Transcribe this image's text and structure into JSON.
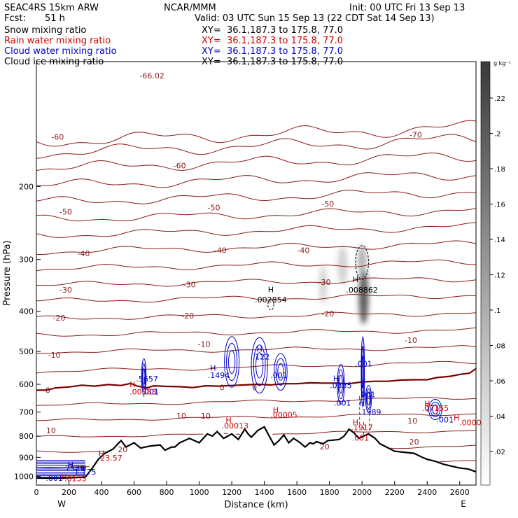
{
  "header": {
    "model": "SEAC4RS 15km ARW",
    "center": "NCAR/MMM",
    "init": "Init: 00 UTC Fri 13 Sep 13",
    "fcst_label": "Fcst:",
    "fcst_value": "51 h",
    "valid": "Valid: 03 UTC Sun 15 Sep 13 (22 CDT Sat 14 Sep 13)"
  },
  "fields": [
    {
      "name": "Snow mixing ratio",
      "xy": "XY=  36.1,187.3 to 175.8, 77.0",
      "color": "#000000"
    },
    {
      "name": "Rain water mixing ratio",
      "xy": "XY=  36.1,187.3 to 175.8, 77.0",
      "color": "#d40000"
    },
    {
      "name": "Cloud water mixing ratio",
      "xy": "XY=  36.1,187.3 to 175.8, 77.0",
      "color": "#0000c8"
    },
    {
      "name": "Cloud ice mixing ratio",
      "xy": "XY=  36.1,187.3 to 175.8, 77.0",
      "color": "#000000"
    }
  ],
  "chart_data": {
    "type": "contour",
    "xlabel": "Distance (km)",
    "ylabel": "Pressure (hPa)",
    "x_ticks": [
      0,
      200,
      400,
      600,
      800,
      1000,
      1200,
      1400,
      1600,
      1800,
      2000,
      2200,
      2400,
      2600
    ],
    "y_ticks": [
      200,
      300,
      400,
      500,
      600,
      700,
      800,
      900,
      1000
    ],
    "xlim": [
      0,
      2700
    ],
    "ylim": [
      1050,
      100
    ],
    "y_scale": "log",
    "west_label": "W",
    "east_label": "E",
    "colorbar": {
      "unit": "g kg⁻¹",
      "ticks": [
        ".22",
        ".2",
        ".18",
        ".16",
        ".14",
        ".12",
        ".1",
        ".08",
        ".06",
        ".04",
        ".02"
      ]
    },
    "temperature_contours": [
      {
        "label": "-70",
        "x": 2330,
        "p": 150
      },
      {
        "label": "-66.02",
        "x": 710,
        "p": 108
      },
      {
        "label": "-60",
        "x": 130,
        "p": 152
      },
      {
        "label": "-60",
        "x": 880,
        "p": 178
      },
      {
        "label": "-50",
        "x": 180,
        "p": 230
      },
      {
        "label": "-50",
        "x": 1090,
        "p": 225
      },
      {
        "label": "-50",
        "x": 1790,
        "p": 220
      },
      {
        "label": "-40",
        "x": 290,
        "p": 290
      },
      {
        "label": "-40",
        "x": 1130,
        "p": 285
      },
      {
        "label": "-40",
        "x": 1640,
        "p": 285
      },
      {
        "label": "-30",
        "x": 180,
        "p": 355
      },
      {
        "label": "-30",
        "x": 940,
        "p": 345
      },
      {
        "label": "-30",
        "x": 1770,
        "p": 340
      },
      {
        "label": "-20",
        "x": 140,
        "p": 415
      },
      {
        "label": "-20",
        "x": 930,
        "p": 410
      },
      {
        "label": "-20",
        "x": 1790,
        "p": 405
      },
      {
        "label": "-10",
        "x": 1030,
        "p": 480
      },
      {
        "label": "-10",
        "x": 2300,
        "p": 470
      },
      {
        "label": "-10",
        "x": 110,
        "p": 510
      },
      {
        "label": "0",
        "x": 70,
        "p": 620
      },
      {
        "label": "0",
        "x": 1340,
        "p": 610
      },
      {
        "label": "0",
        "x": 1140,
        "p": 610
      },
      {
        "label": "10",
        "x": 1040,
        "p": 715
      },
      {
        "label": "10",
        "x": 890,
        "p": 715
      },
      {
        "label": "10",
        "x": 2310,
        "p": 735
      },
      {
        "label": "10",
        "x": 90,
        "p": 775
      },
      {
        "label": "20",
        "x": 530,
        "p": 862
      },
      {
        "label": "20",
        "x": 1770,
        "p": 848
      },
      {
        "label": "20",
        "x": 2320,
        "p": 825
      }
    ],
    "annotations": [
      {
        "text": "H",
        "x": 1440,
        "p": 354,
        "color": "#000000"
      },
      {
        "text": ".002854",
        "x": 1440,
        "p": 375,
        "color": "#000000"
      },
      {
        "text": "H",
        "x": 1960,
        "p": 335,
        "color": "#000000"
      },
      {
        "text": ".008862",
        "x": 2000,
        "p": 355,
        "color": "#000000"
      },
      {
        "text": "H",
        "x": 1370,
        "p": 493,
        "color": "#0000c8"
      },
      {
        "text": ".122",
        "x": 1380,
        "p": 515,
        "color": "#0000c8"
      },
      {
        "text": "H",
        "x": 1085,
        "p": 548,
        "color": "#0000c8"
      },
      {
        "text": ".1494",
        "x": 1120,
        "p": 570,
        "color": "#0000c8"
      },
      {
        "text": ".001",
        "x": 1490,
        "p": 570,
        "color": "#0000c8"
      },
      {
        "text": ".5657",
        "x": 680,
        "p": 582,
        "color": "#0000c8"
      },
      {
        "text": ".001",
        "x": 700,
        "p": 625,
        "color": "#0000c8"
      },
      {
        "text": ".001",
        "x": 2010,
        "p": 535,
        "color": "#0000c8"
      },
      {
        "text": "H",
        "x": 1840,
        "p": 580,
        "color": "#0000c8"
      },
      {
        "text": ".0335",
        "x": 1870,
        "p": 603,
        "color": "#0000c8"
      },
      {
        "text": ".001",
        "x": 2030,
        "p": 635,
        "color": "#0000c8"
      },
      {
        "text": ".001",
        "x": 1880,
        "p": 665,
        "color": "#0000c8"
      },
      {
        "text": "H",
        "x": 2000,
        "p": 665,
        "color": "#0000c8"
      },
      {
        "text": ".1989",
        "x": 2050,
        "p": 700,
        "color": "#0000c8"
      },
      {
        "text": ".001",
        "x": 2510,
        "p": 730,
        "color": "#0000c8"
      },
      {
        "text": "H",
        "x": 1470,
        "p": 692,
        "color": "#d40000"
      },
      {
        "text": ".00005",
        "x": 1520,
        "p": 711,
        "color": "#d40000"
      },
      {
        "text": "H",
        "x": 1180,
        "p": 732,
        "color": "#d40000"
      },
      {
        "text": ".00013",
        "x": 1220,
        "p": 755,
        "color": "#d40000"
      },
      {
        "text": "H",
        "x": 590,
        "p": 600,
        "color": "#d40000"
      },
      {
        "text": ".00383",
        "x": 655,
        "p": 625,
        "color": "#d40000"
      },
      {
        "text": "H",
        "x": 1960,
        "p": 740,
        "color": "#d40000"
      },
      {
        "text": ".1917",
        "x": 2000,
        "p": 762,
        "color": "#d40000"
      },
      {
        "text": ".001",
        "x": 1990,
        "p": 807,
        "color": "#d40000"
      },
      {
        "text": "H",
        "x": 2400,
        "p": 668,
        "color": "#d40000"
      },
      {
        "text": ".07155",
        "x": 2450,
        "p": 685,
        "color": "#d40000"
      },
      {
        "text": "H",
        "x": 2580,
        "p": 722,
        "color": "#d40000"
      },
      {
        "text": ".00000",
        "x": 2680,
        "p": 742,
        "color": "#d40000"
      },
      {
        "text": "H",
        "x": 400,
        "p": 880,
        "color": "#d40000"
      },
      {
        "text": "23.57",
        "x": 460,
        "p": 903,
        "color": "#d40000"
      },
      {
        "text": "H",
        "x": 210,
        "p": 937,
        "color": "#0000c8"
      },
      {
        "text": ".7539",
        "x": 230,
        "p": 957,
        "color": "#0000c8"
      },
      {
        "text": "H",
        "x": 290,
        "p": 955,
        "color": "#0000c8"
      },
      {
        "text": "1.175",
        "x": 300,
        "p": 975,
        "color": "#0000c8"
      },
      {
        "text": "H",
        "x": 170,
        "p": 1003,
        "color": "#d40000"
      },
      {
        "text": ".001",
        "x": 110,
        "p": 1010,
        "color": "#0000c8"
      },
      {
        "text": ".0153",
        "x": 240,
        "p": 1012,
        "color": "#d40000"
      }
    ],
    "terrain": [
      [
        0,
        1010
      ],
      [
        5,
        1010
      ],
      [
        160,
        1010
      ],
      [
        300,
        1005
      ],
      [
        340,
        960
      ],
      [
        380,
        910
      ],
      [
        420,
        880
      ],
      [
        470,
        860
      ],
      [
        520,
        820
      ],
      [
        550,
        850
      ],
      [
        600,
        830
      ],
      [
        640,
        855
      ],
      [
        700,
        845
      ],
      [
        760,
        840
      ],
      [
        790,
        865
      ],
      [
        830,
        850
      ],
      [
        850,
        850
      ],
      [
        880,
        830
      ],
      [
        940,
        810
      ],
      [
        1000,
        830
      ],
      [
        1050,
        790
      ],
      [
        1080,
        800
      ],
      [
        1110,
        780
      ],
      [
        1150,
        810
      ],
      [
        1200,
        790
      ],
      [
        1240,
        815
      ],
      [
        1280,
        770
      ],
      [
        1300,
        790
      ],
      [
        1320,
        805
      ],
      [
        1360,
        775
      ],
      [
        1400,
        760
      ],
      [
        1430,
        800
      ],
      [
        1460,
        840
      ],
      [
        1490,
        820
      ],
      [
        1520,
        795
      ],
      [
        1550,
        830
      ],
      [
        1580,
        810
      ],
      [
        1600,
        820
      ],
      [
        1620,
        830
      ],
      [
        1650,
        850
      ],
      [
        1680,
        830
      ],
      [
        1700,
        835
      ],
      [
        1720,
        825
      ],
      [
        1760,
        835
      ],
      [
        1790,
        820
      ],
      [
        1820,
        818
      ],
      [
        1860,
        815
      ],
      [
        1890,
        800
      ],
      [
        1920,
        770
      ],
      [
        1950,
        785
      ],
      [
        1980,
        810
      ],
      [
        2010,
        800
      ],
      [
        2040,
        790
      ],
      [
        2080,
        810
      ],
      [
        2110,
        835
      ],
      [
        2150,
        850
      ],
      [
        2200,
        870
      ],
      [
        2260,
        875
      ],
      [
        2320,
        880
      ],
      [
        2370,
        900
      ],
      [
        2400,
        910
      ],
      [
        2450,
        920
      ],
      [
        2500,
        935
      ],
      [
        2550,
        945
      ],
      [
        2600,
        955
      ],
      [
        2650,
        960
      ],
      [
        2700,
        975
      ]
    ],
    "freezing_level": [
      [
        0,
        620
      ],
      [
        60,
        620
      ],
      [
        120,
        612
      ],
      [
        200,
        609
      ],
      [
        280,
        603
      ],
      [
        360,
        606
      ],
      [
        440,
        601
      ],
      [
        520,
        604
      ],
      [
        580,
        597
      ],
      [
        620,
        606
      ],
      [
        680,
        612
      ],
      [
        720,
        605
      ],
      [
        800,
        607
      ],
      [
        880,
        608
      ],
      [
        960,
        611
      ],
      [
        1040,
        605
      ],
      [
        1120,
        606
      ],
      [
        1200,
        604
      ],
      [
        1280,
        602
      ],
      [
        1360,
        600
      ],
      [
        1440,
        602
      ],
      [
        1520,
        598
      ],
      [
        1600,
        598
      ],
      [
        1680,
        595
      ],
      [
        1760,
        596
      ],
      [
        1840,
        596
      ],
      [
        1920,
        598
      ],
      [
        2000,
        592
      ],
      [
        2080,
        590
      ],
      [
        2160,
        590
      ],
      [
        2240,
        586
      ],
      [
        2320,
        585
      ],
      [
        2400,
        585
      ],
      [
        2460,
        578
      ],
      [
        2540,
        574
      ],
      [
        2600,
        568
      ],
      [
        2660,
        564
      ],
      [
        2700,
        550
      ]
    ],
    "isotherm_pressures": [
      150,
      160,
      175,
      193,
      212,
      234,
      256,
      281,
      310,
      340,
      372,
      410,
      450,
      495,
      545,
      660,
      720,
      790,
      860,
      935
    ],
    "snow_cells": [
      {
        "x": 1760,
        "p": 345,
        "rx": 25,
        "rp": 40,
        "max": 0.03
      },
      {
        "x": 1880,
        "p": 310,
        "rx": 30,
        "rp": 35,
        "max": 0.035
      },
      {
        "x": 2010,
        "p": 370,
        "rx": 30,
        "rp": 60,
        "max": 0.12
      },
      {
        "x": 2000,
        "p": 300,
        "rx": 25,
        "rp": 25,
        "max": 0.06
      }
    ]
  }
}
